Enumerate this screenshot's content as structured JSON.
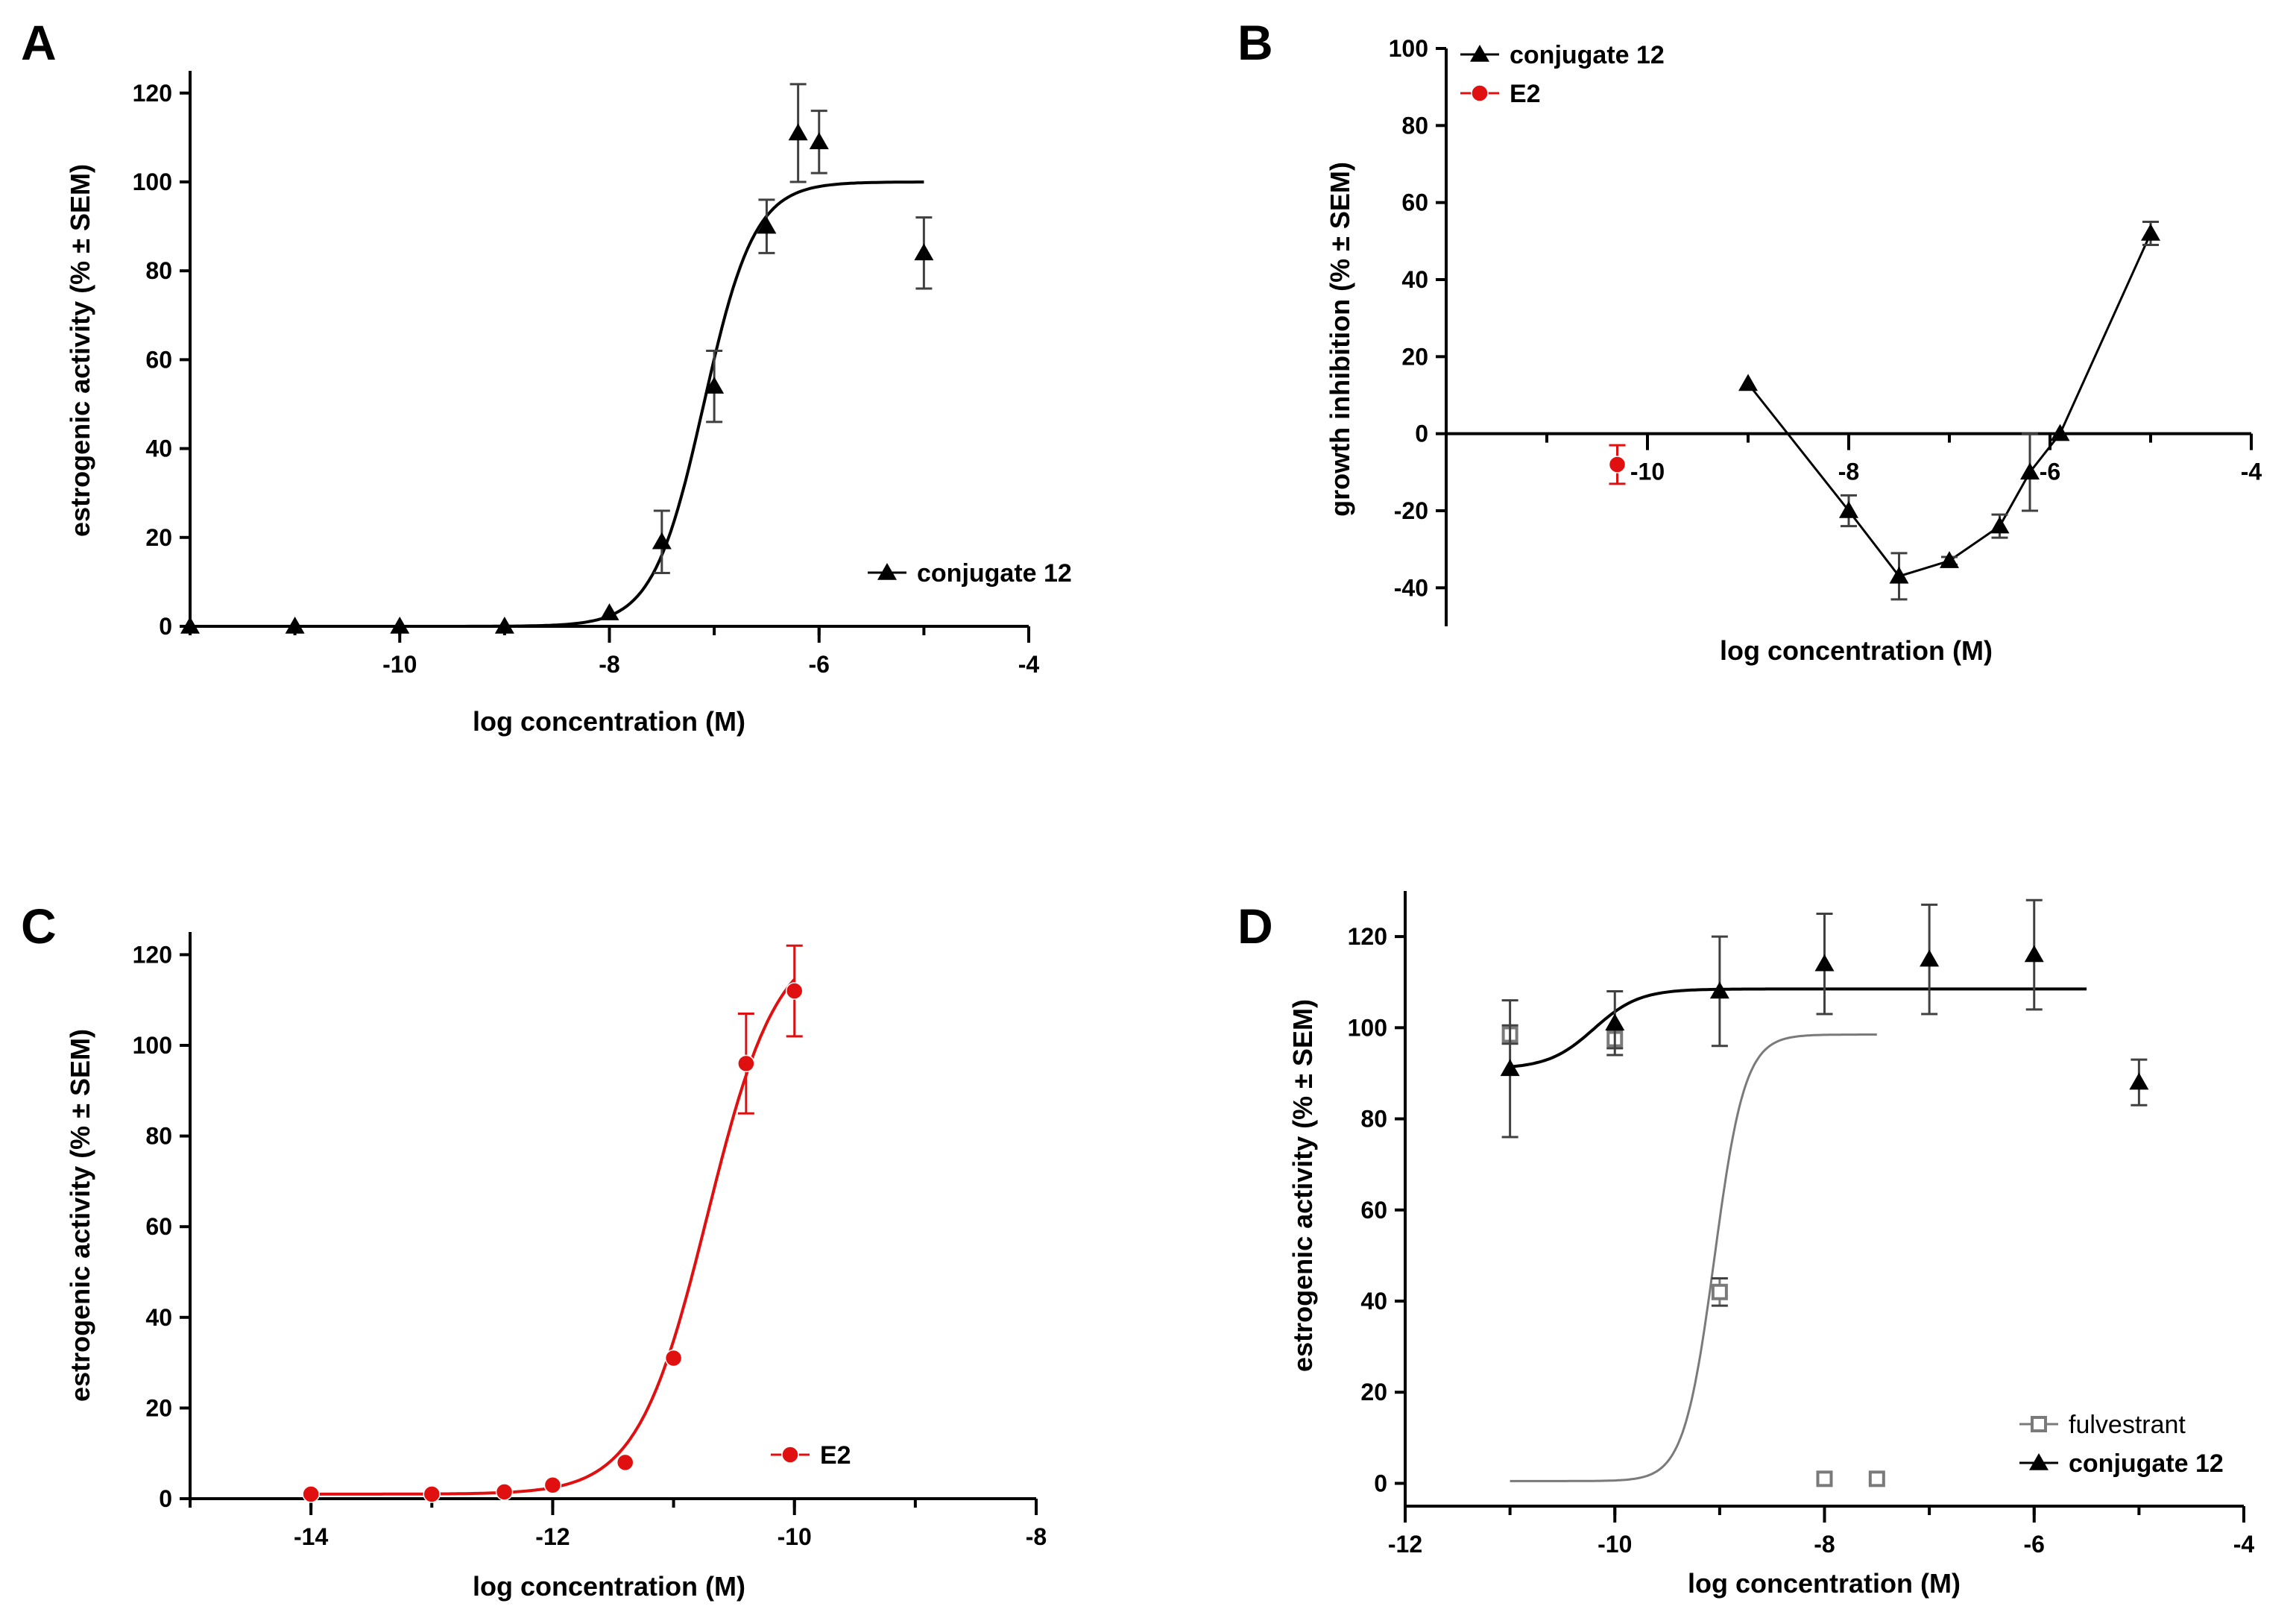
{
  "chart_data": [
    {
      "panel": "A",
      "type": "scatter",
      "xlabel": "log concentration (M)",
      "ylabel": "estrogenic activity (% ± SEM)",
      "xlim": [
        -12,
        -4
      ],
      "ylim": [
        0,
        125
      ],
      "x_ticks": [
        "-10",
        "-8",
        "-6",
        "-4"
      ],
      "y_ticks": [
        "0",
        "20",
        "40",
        "60",
        "80",
        "100",
        "120"
      ],
      "legend": "bottom-right",
      "series": [
        {
          "name": "conjugate 12",
          "color": "#000000",
          "marker": "triangle",
          "points": [
            {
              "x": -12,
              "y": 0,
              "err": 0
            },
            {
              "x": -11,
              "y": 0,
              "err": 0
            },
            {
              "x": -10,
              "y": 0,
              "err": 0
            },
            {
              "x": -9,
              "y": 0,
              "err": 0
            },
            {
              "x": -8,
              "y": 3,
              "err": 0
            },
            {
              "x": -7.5,
              "y": 19,
              "err": 7
            },
            {
              "x": -7,
              "y": 54,
              "err": 8
            },
            {
              "x": -6.5,
              "y": 90,
              "err": 6
            },
            {
              "x": -6.2,
              "y": 111,
              "err": 11
            },
            {
              "x": -6,
              "y": 109,
              "err": 7
            },
            {
              "x": -5,
              "y": 84,
              "err": 8
            }
          ],
          "fit": {
            "bottom": 0,
            "top": 100,
            "log_ec50": -7.1,
            "hill": 1.8,
            "x_range": [
              -12,
              -5
            ]
          }
        }
      ]
    },
    {
      "panel": "B",
      "type": "line",
      "xlabel": "log concentration (M)",
      "ylabel": "growth inhibition (% ± SEM)",
      "xlim": [
        -12,
        -4
      ],
      "ylim": [
        -50,
        100
      ],
      "x_ticks": [
        "-10",
        "-8",
        "-6",
        "-4"
      ],
      "y_ticks": [
        "-40",
        "-20",
        "0",
        "20",
        "40",
        "60",
        "80",
        "100"
      ],
      "legend": "top-left",
      "series": [
        {
          "name": "conjugate 12",
          "color": "#000000",
          "marker": "triangle",
          "points": [
            {
              "x": -9,
              "y": 13,
              "err": 0
            },
            {
              "x": -8,
              "y": -20,
              "err": 4
            },
            {
              "x": -7.5,
              "y": -37,
              "err": 6
            },
            {
              "x": -7,
              "y": -33,
              "err": 1
            },
            {
              "x": -6.5,
              "y": -24,
              "err": 3
            },
            {
              "x": -6.2,
              "y": -10,
              "err": 10
            },
            {
              "x": -5.9,
              "y": 0,
              "err": 0
            },
            {
              "x": -5,
              "y": 52,
              "err": 3
            }
          ]
        },
        {
          "name": "E2",
          "color": "#e01010",
          "marker": "circle",
          "points": [
            {
              "x": -10.3,
              "y": -8,
              "err": 5
            }
          ]
        }
      ]
    },
    {
      "panel": "C",
      "type": "scatter",
      "xlabel": "log concentration (M)",
      "ylabel": "estrogenic activity (% ± SEM)",
      "xlim": [
        -15,
        -8
      ],
      "ylim": [
        0,
        125
      ],
      "x_ticks": [
        "-14",
        "-12",
        "-10",
        "-8"
      ],
      "y_ticks": [
        "0",
        "20",
        "40",
        "60",
        "80",
        "100",
        "120"
      ],
      "legend": "bottom-right",
      "series": [
        {
          "name": "E2",
          "color": "#e01010",
          "marker": "circle",
          "points": [
            {
              "x": -14,
              "y": 1,
              "err": 0
            },
            {
              "x": -13,
              "y": 1,
              "err": 0
            },
            {
              "x": -12.4,
              "y": 1.5,
              "err": 0
            },
            {
              "x": -12,
              "y": 3,
              "err": 0
            },
            {
              "x": -11.4,
              "y": 8,
              "err": 0
            },
            {
              "x": -11,
              "y": 31,
              "err": 0
            },
            {
              "x": -10.4,
              "y": 96,
              "err": 11
            },
            {
              "x": -10,
              "y": 112,
              "err": 10
            }
          ],
          "fit": {
            "bottom": 1,
            "top": 124,
            "log_ec50": -10.72,
            "hill": 1.5,
            "x_range": [
              -14,
              -10
            ]
          }
        }
      ]
    },
    {
      "panel": "D",
      "type": "scatter",
      "xlabel": "log concentration (M)",
      "ylabel": "estrogenic activity (% ± SEM)",
      "xlim": [
        -12,
        -4
      ],
      "ylim": [
        -5,
        130
      ],
      "x_ticks": [
        "-12",
        "-10",
        "-8",
        "-6",
        "-4"
      ],
      "y_ticks": [
        "0",
        "20",
        "40",
        "60",
        "80",
        "100",
        "120"
      ],
      "legend": "bottom-right",
      "series": [
        {
          "name": "fulvestrant",
          "color": "#7a7a7a",
          "marker": "square",
          "points": [
            {
              "x": -11,
              "y": 98.5,
              "err": 2
            },
            {
              "x": -10,
              "y": 97.5,
              "err": 2
            },
            {
              "x": -9,
              "y": 42,
              "err": 3
            },
            {
              "x": -8,
              "y": 1,
              "err": 0
            },
            {
              "x": -7.5,
              "y": 1,
              "err": 0
            }
          ],
          "fit": {
            "bottom": 0.5,
            "top": 98.5,
            "log_ec50": -9.05,
            "hill": 3.0,
            "x_range": [
              -11,
              -7.5
            ]
          }
        },
        {
          "name": "conjugate 12",
          "color": "#000000",
          "marker": "triangle",
          "points": [
            {
              "x": -11,
              "y": 91,
              "err": 15
            },
            {
              "x": -10,
              "y": 101,
              "err": 7
            },
            {
              "x": -9,
              "y": 108,
              "err": 12
            },
            {
              "x": -8,
              "y": 114,
              "err": 11
            },
            {
              "x": -7,
              "y": 115,
              "err": 12
            },
            {
              "x": -6,
              "y": 116,
              "err": 12
            },
            {
              "x": -5,
              "y": 88,
              "err": 5
            }
          ],
          "fit": {
            "bottom": 91,
            "top": 108.5,
            "log_ec50": -10.2,
            "hill": 2.0,
            "x_range": [
              -11,
              -5.5
            ]
          }
        }
      ]
    }
  ]
}
